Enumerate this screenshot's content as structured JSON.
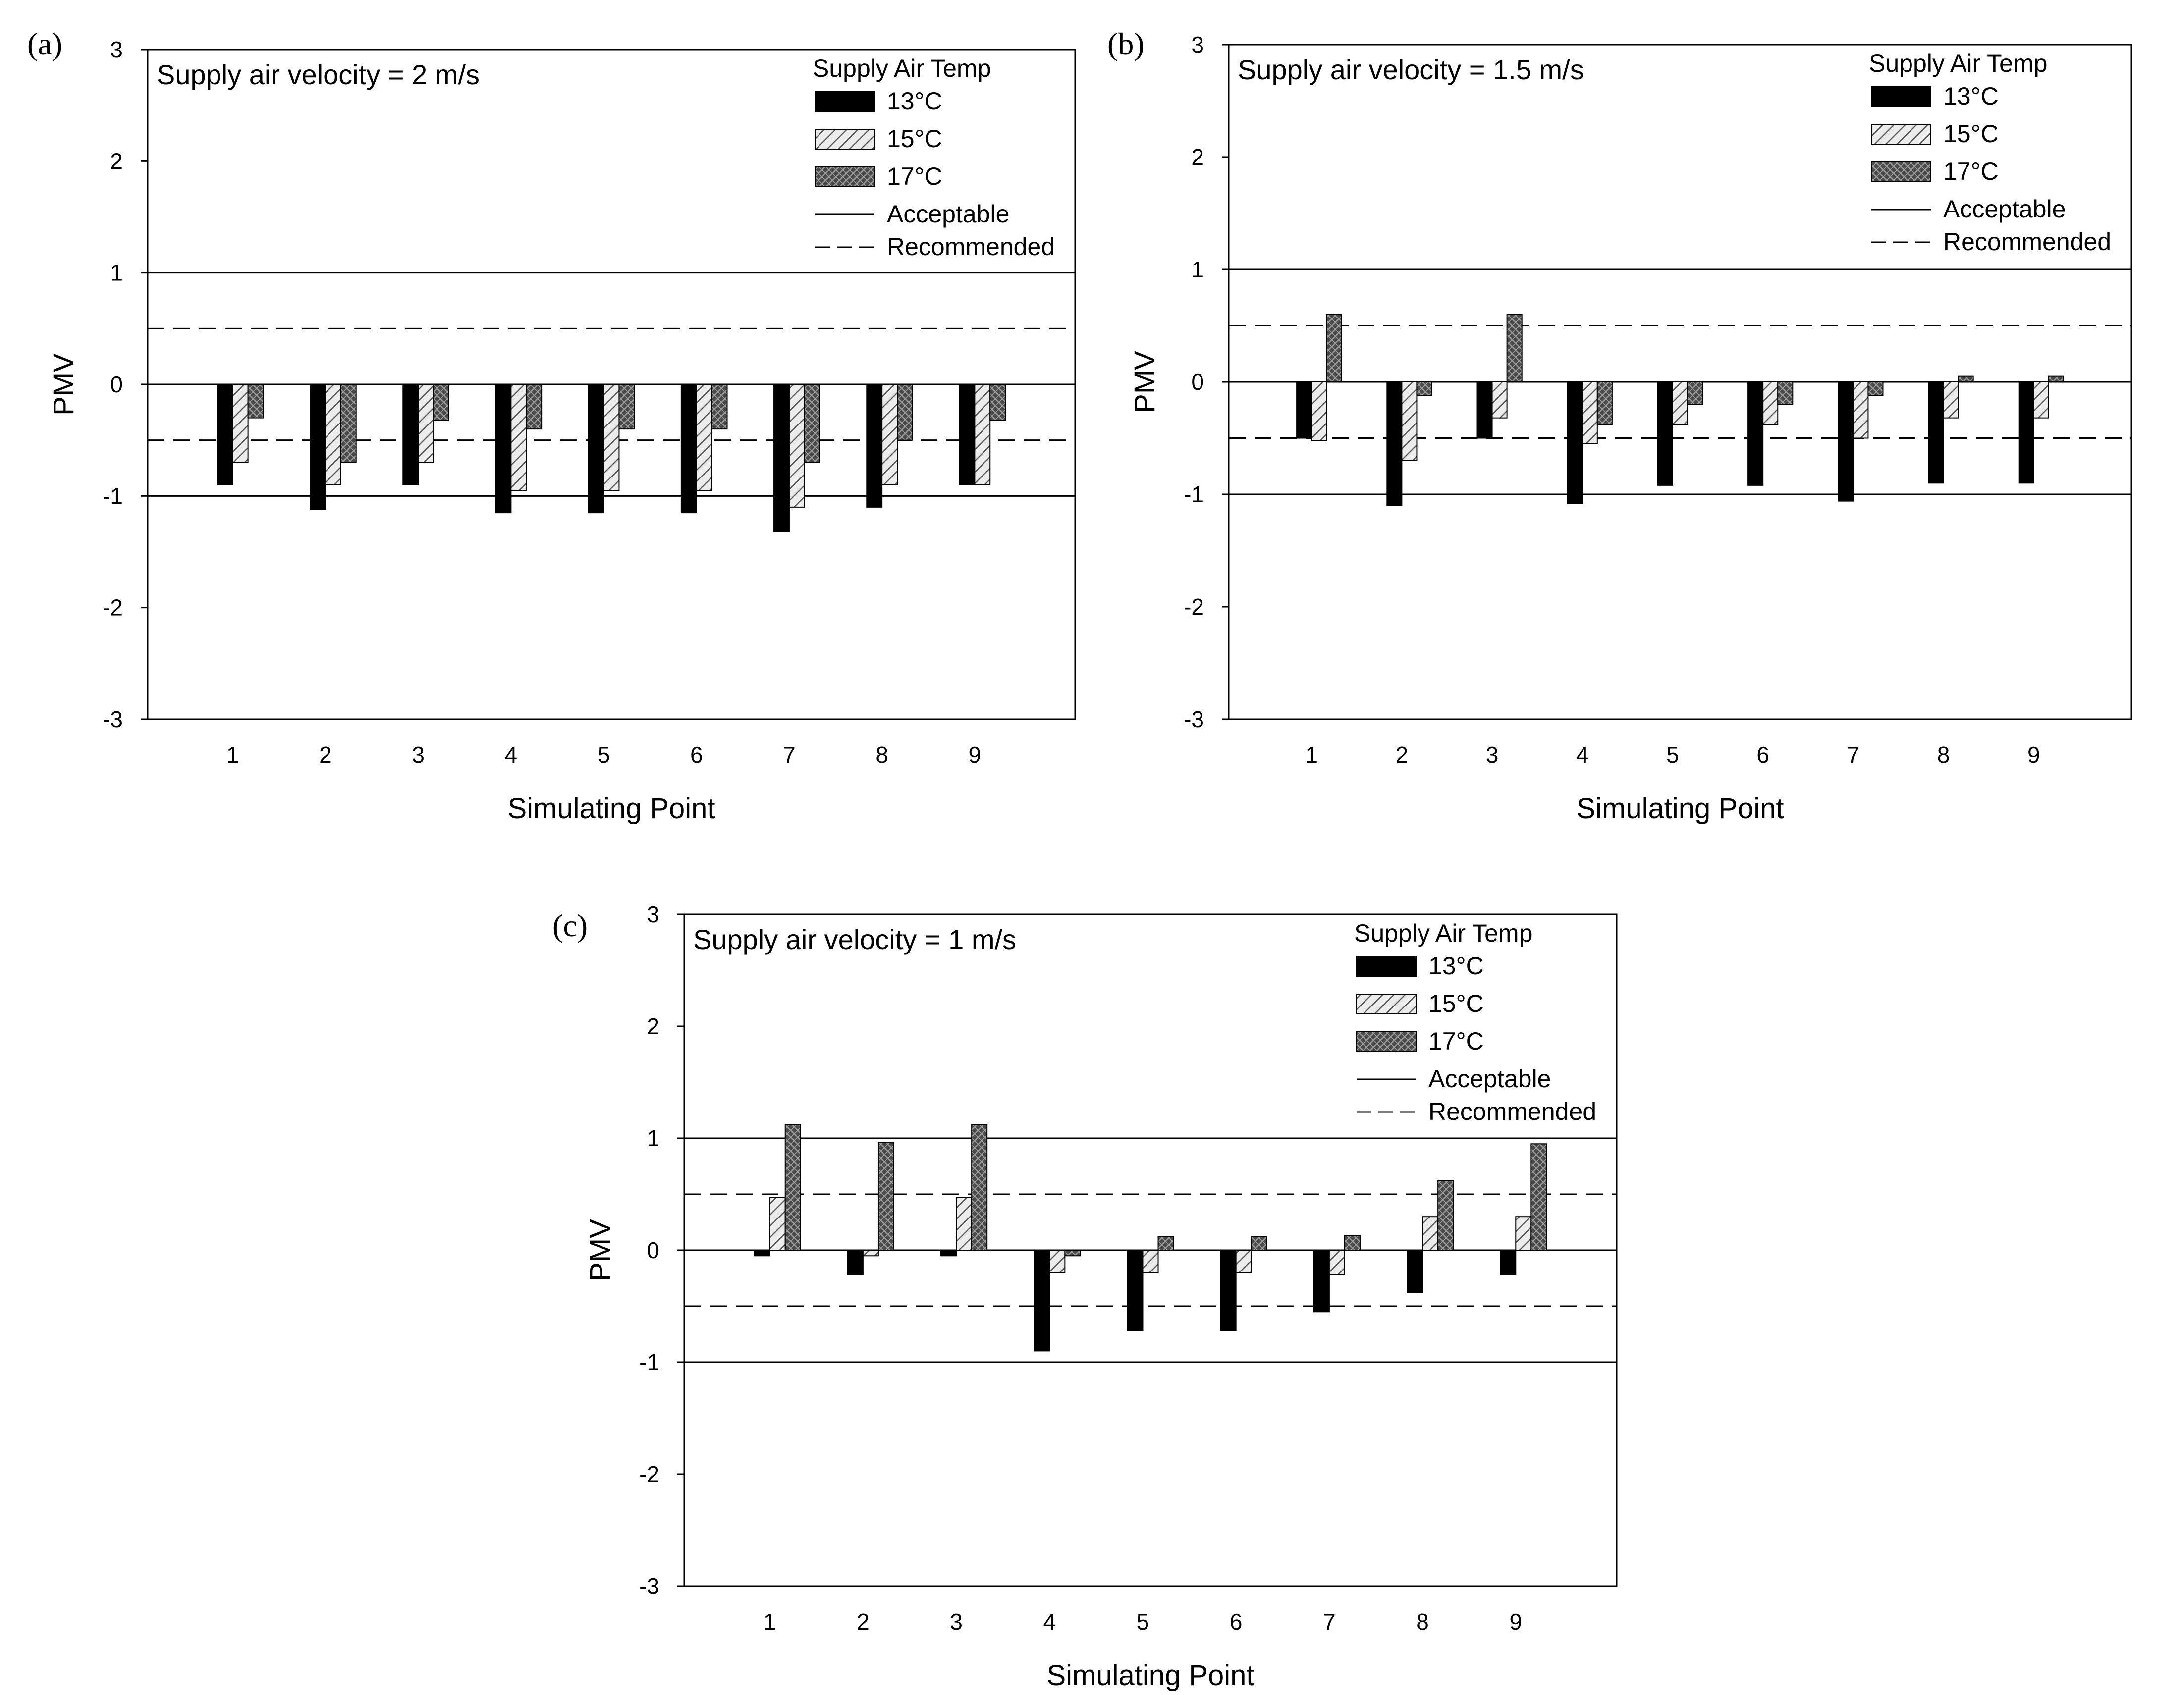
{
  "chart_data": [
    {
      "panel_label": "(a)",
      "type": "bar",
      "annotation": "Supply air velocity = 2 m/s",
      "xlabel": "Simulating Point",
      "ylabel": "PMV",
      "ylim": [
        -3,
        3
      ],
      "yticks": [
        "3",
        "2",
        "1",
        "0",
        "-1",
        "-2",
        "-3"
      ],
      "categories": [
        "1",
        "2",
        "3",
        "4",
        "5",
        "6",
        "7",
        "8",
        "9"
      ],
      "legend_title": "Supply Air Temp",
      "series": [
        {
          "name": "13°C",
          "values": [
            -0.9,
            -1.12,
            -0.9,
            -1.15,
            -1.15,
            -1.15,
            -1.32,
            -1.1,
            -0.9
          ]
        },
        {
          "name": "15°C",
          "values": [
            -0.7,
            -0.9,
            -0.7,
            -0.95,
            -0.95,
            -0.95,
            -1.1,
            -0.9,
            -0.9
          ]
        },
        {
          "name": "17°C",
          "values": [
            -0.3,
            -0.7,
            -0.32,
            -0.4,
            -0.4,
            -0.4,
            -0.7,
            -0.5,
            -0.32
          ]
        }
      ],
      "lines": [
        {
          "name": "Acceptable",
          "style": "solid",
          "values": [
            1,
            -1
          ]
        },
        {
          "name": "Recommended",
          "style": "dashed",
          "values": [
            0.5,
            -0.5
          ]
        }
      ]
    },
    {
      "panel_label": "(b)",
      "type": "bar",
      "annotation": "Supply air velocity = 1.5 m/s",
      "xlabel": "Simulating Point",
      "ylabel": "PMV",
      "ylim": [
        -3,
        3
      ],
      "yticks": [
        "3",
        "2",
        "1",
        "0",
        "-1",
        "-2",
        "-3"
      ],
      "categories": [
        "1",
        "2",
        "3",
        "4",
        "5",
        "6",
        "7",
        "8",
        "9"
      ],
      "legend_title": "Supply Air Temp",
      "series": [
        {
          "name": "13°C",
          "values": [
            -0.5,
            -1.1,
            -0.5,
            -1.08,
            -0.92,
            -0.92,
            -1.06,
            -0.9,
            -0.9
          ]
        },
        {
          "name": "15°C",
          "values": [
            -0.52,
            -0.7,
            -0.32,
            -0.55,
            -0.38,
            -0.38,
            -0.5,
            -0.32,
            -0.32
          ]
        },
        {
          "name": "17°C",
          "values": [
            0.6,
            -0.12,
            0.6,
            -0.38,
            -0.2,
            -0.2,
            -0.12,
            0.05,
            0.05
          ]
        }
      ],
      "lines": [
        {
          "name": "Acceptable",
          "style": "solid",
          "values": [
            1,
            -1
          ]
        },
        {
          "name": "Recommended",
          "style": "dashed",
          "values": [
            0.5,
            -0.5
          ]
        }
      ]
    },
    {
      "panel_label": "(c)",
      "type": "bar",
      "annotation": "Supply air velocity = 1 m/s",
      "xlabel": "Simulating Point",
      "ylabel": "PMV",
      "ylim": [
        -3,
        3
      ],
      "yticks": [
        "3",
        "2",
        "1",
        "0",
        "-1",
        "-2",
        "-3"
      ],
      "categories": [
        "1",
        "2",
        "3",
        "4",
        "5",
        "6",
        "7",
        "8",
        "9"
      ],
      "legend_title": "Supply Air Temp",
      "series": [
        {
          "name": "13°C",
          "values": [
            -0.05,
            -0.22,
            -0.05,
            -0.9,
            -0.72,
            -0.72,
            -0.55,
            -0.38,
            -0.22
          ]
        },
        {
          "name": "15°C",
          "values": [
            0.47,
            -0.05,
            0.47,
            -0.2,
            -0.2,
            -0.2,
            -0.22,
            0.3,
            0.3
          ]
        },
        {
          "name": "17°C",
          "values": [
            1.12,
            0.96,
            1.12,
            -0.05,
            0.12,
            0.12,
            0.13,
            0.62,
            0.95
          ]
        }
      ],
      "lines": [
        {
          "name": "Acceptable",
          "style": "solid",
          "values": [
            1,
            -1
          ]
        },
        {
          "name": "Recommended",
          "style": "dashed",
          "values": [
            0.5,
            -0.5
          ]
        }
      ]
    }
  ],
  "colors": {
    "series_13": "#000000",
    "series_15": "#d4d4d4",
    "series_17": "#505050",
    "axis": "#000000"
  }
}
